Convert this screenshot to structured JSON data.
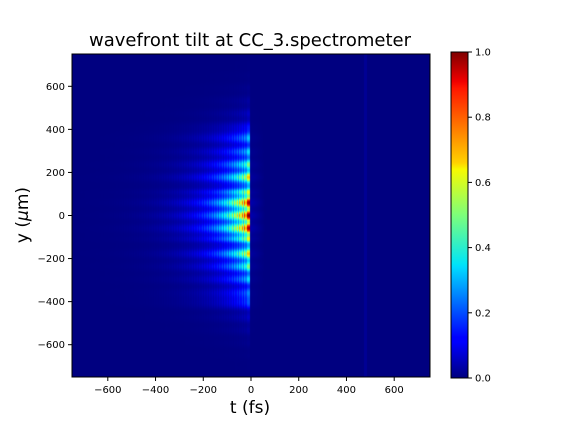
{
  "chart_data": {
    "type": "heatmap",
    "title": "wavefront tilt at CC_3.spectrometer",
    "xlabel": "t (fs)",
    "ylabel_prefix": "y (",
    "ylabel_mu": "μ",
    "ylabel_suffix": "m)",
    "xlim": [
      -750,
      750
    ],
    "ylim": [
      -750,
      750
    ],
    "x_ticks": [
      -600,
      -400,
      -200,
      0,
      200,
      400,
      600
    ],
    "x_tick_labels": [
      "−600",
      "−400",
      "−200",
      "0",
      "200",
      "400",
      "600"
    ],
    "y_ticks": [
      600,
      400,
      200,
      0,
      -200,
      -400,
      -600
    ],
    "y_tick_labels": [
      "600",
      "400",
      "200",
      "0",
      "−200",
      "−400",
      "−600"
    ],
    "colormap": "jet",
    "colorbar": {
      "range": [
        0.0,
        1.0
      ],
      "ticks": [
        1.0,
        0.8,
        0.6,
        0.4,
        0.2,
        0.0
      ],
      "tick_labels": [
        "1.0",
        "0.8",
        "0.6",
        "0.4",
        "0.2",
        "0.0"
      ]
    },
    "intensity_model": {
      "t_peak_fs": -15,
      "t_cutoff_fs": -5,
      "t_tail_fs": 60,
      "decay_fs": 115,
      "y_gaussian_width_um": 205,
      "lobe_dips_um": [
        130,
        -130
      ],
      "outer_bands_um": [
        370,
        -390
      ],
      "peak_value": 1.0
    }
  }
}
